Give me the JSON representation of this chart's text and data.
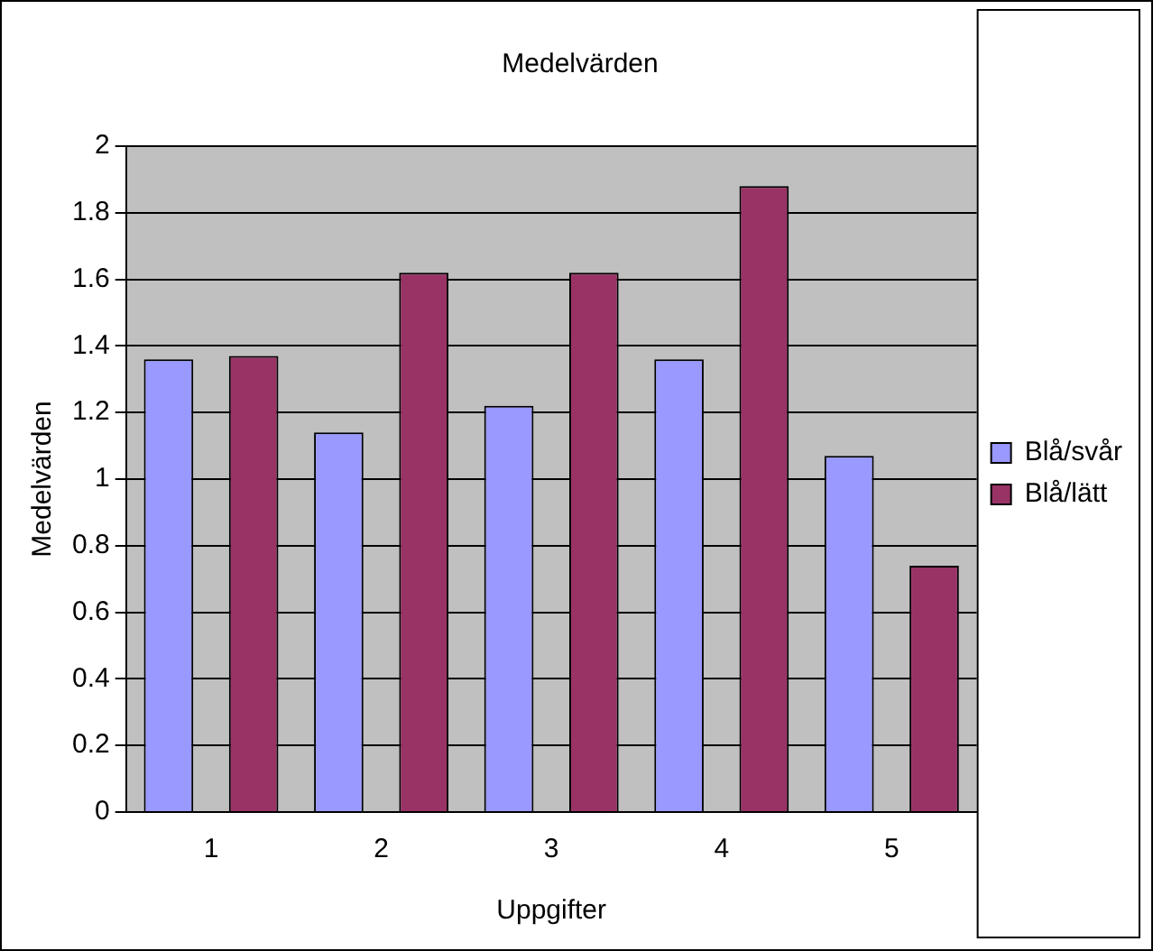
{
  "chart_data": {
    "type": "bar",
    "title": "Medelvärden",
    "xlabel": "Uppgifter",
    "ylabel": "Medelvärden",
    "categories": [
      "1",
      "2",
      "3",
      "4",
      "5"
    ],
    "series": [
      {
        "name": "Blå/svår",
        "color": "#9999ff",
        "values": [
          1.36,
          1.14,
          1.22,
          1.36,
          1.07
        ]
      },
      {
        "name": "Blå/lätt",
        "color": "#993366",
        "values": [
          1.37,
          1.62,
          1.62,
          1.88,
          0.74
        ]
      }
    ],
    "ylim": [
      0,
      2
    ],
    "yticks": [
      0,
      0.2,
      0.4,
      0.6,
      0.8,
      1,
      1.2,
      1.4,
      1.6,
      1.8,
      2
    ],
    "grid": "y",
    "legend": "right"
  }
}
